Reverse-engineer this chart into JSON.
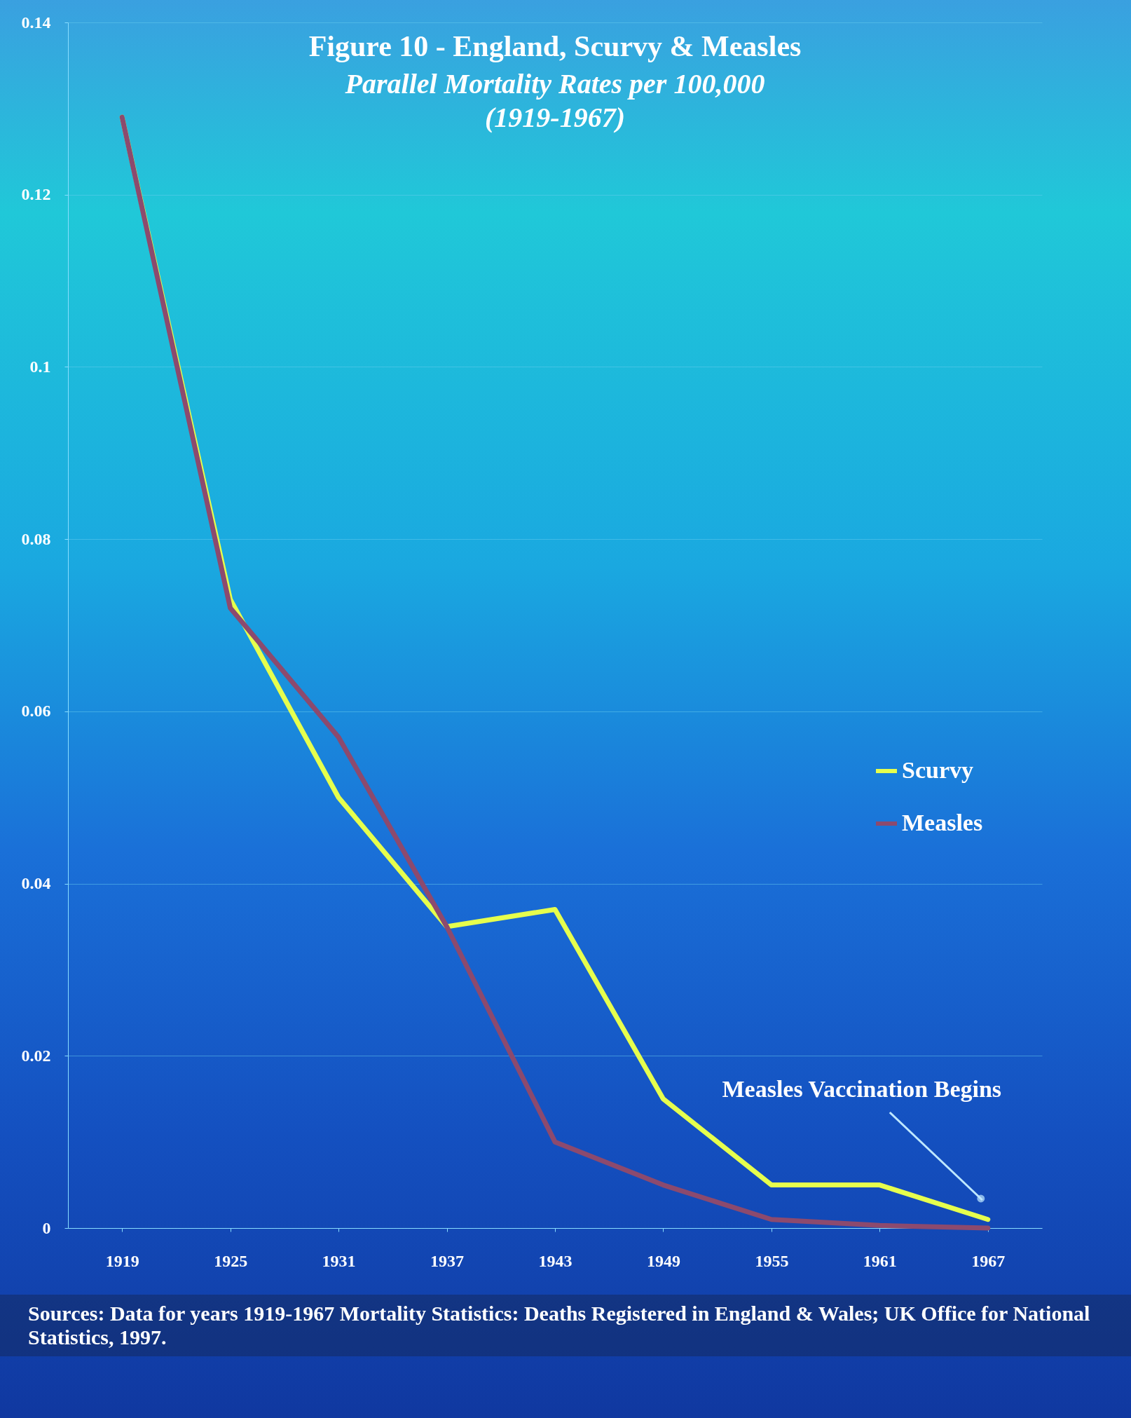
{
  "chart_data": {
    "type": "line",
    "title": "Figure 10 - England, Scurvy & Measles",
    "subtitle": [
      "Parallel Mortality Rates per 100,000",
      "(1919-1967)"
    ],
    "categories": [
      "1919",
      "1925",
      "1931",
      "1937",
      "1943",
      "1949",
      "1955",
      "1961",
      "1967"
    ],
    "series": [
      {
        "name": "Scurvy",
        "color": "#e6ff4d",
        "values": [
          0.129,
          0.073,
          0.05,
          0.035,
          0.037,
          0.015,
          0.005,
          0.005,
          0.001
        ]
      },
      {
        "name": "Measles",
        "color": "#8c4a6e",
        "values": [
          0.129,
          0.072,
          0.057,
          0.035,
          0.01,
          0.005,
          0.001,
          0.0003,
          0
        ]
      }
    ],
    "ylim": [
      0,
      0.14
    ],
    "yticks": [
      0,
      0.02,
      0.04,
      0.06,
      0.08,
      0.1,
      0.12,
      0.14
    ],
    "grid": "y",
    "legend": "right",
    "marker": "none",
    "line_style": "solid",
    "annotations": [
      "Measles Vaccination Begins",
      "Sources: Data for years 1919-1967 Mortality Statistics: Deaths Registered in England & Wales;  UK Office for National Statistics, 1997."
    ]
  }
}
